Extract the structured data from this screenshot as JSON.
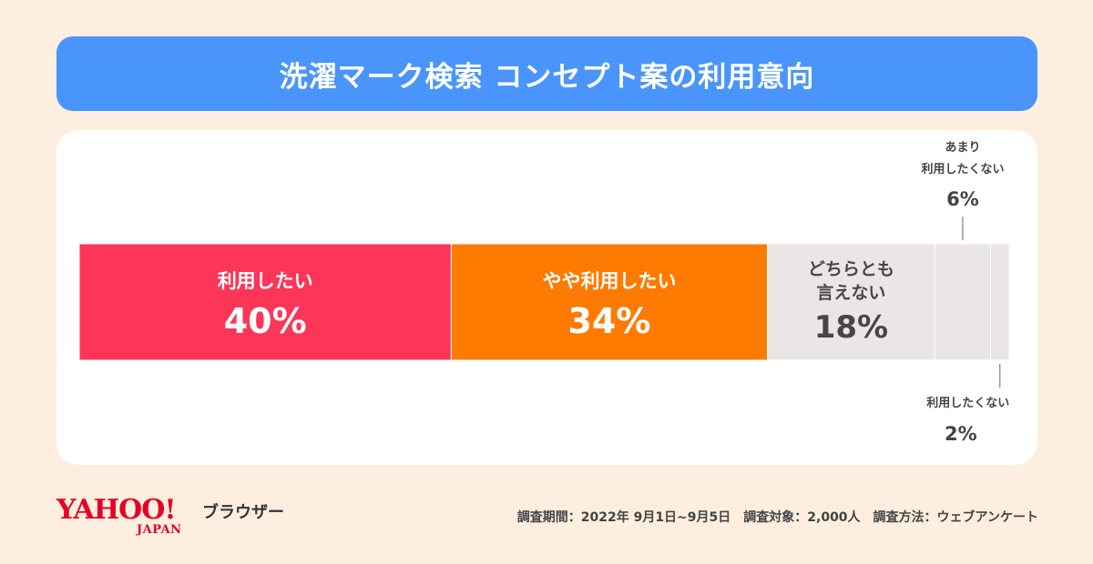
{
  "title": "洗濯マーク検索 コンセプト案の利用意向",
  "chart_data": {
    "type": "bar",
    "stacked": true,
    "orientation": "horizontal",
    "categories": [
      "利用したい",
      "やや利用したい",
      "どちらとも言えない",
      "あまり利用したくない",
      "利用したくない"
    ],
    "category_lines": [
      [
        "利用したい"
      ],
      [
        "やや利用したい"
      ],
      [
        "どちらとも",
        "言えない"
      ],
      [
        "あまり",
        "利用したくない"
      ],
      [
        "利用したくない"
      ]
    ],
    "values": [
      40,
      34,
      18,
      6,
      2
    ],
    "value_labels": [
      "40%",
      "34%",
      "18%",
      "6%",
      "2%"
    ],
    "colors": [
      "#fd3558",
      "#fd7b00",
      "#ebe6e6",
      "#ebe6e6",
      "#ebe6e6"
    ],
    "text_colors": [
      "#ffffff",
      "#ffffff",
      "#4a4545",
      "#4a4545",
      "#4a4545"
    ],
    "label_positions": [
      "inside",
      "inside",
      "inside",
      "above",
      "below"
    ],
    "xlim": [
      0,
      100
    ]
  },
  "footer": {
    "logo_main": "YAHOO!",
    "logo_sub": "JAPAN",
    "logo_product": "ブラウザー",
    "note": "調査期間：2022年 9月1日~9月5日　調査対象：2,000人　調査方法：ウェブアンケート"
  }
}
